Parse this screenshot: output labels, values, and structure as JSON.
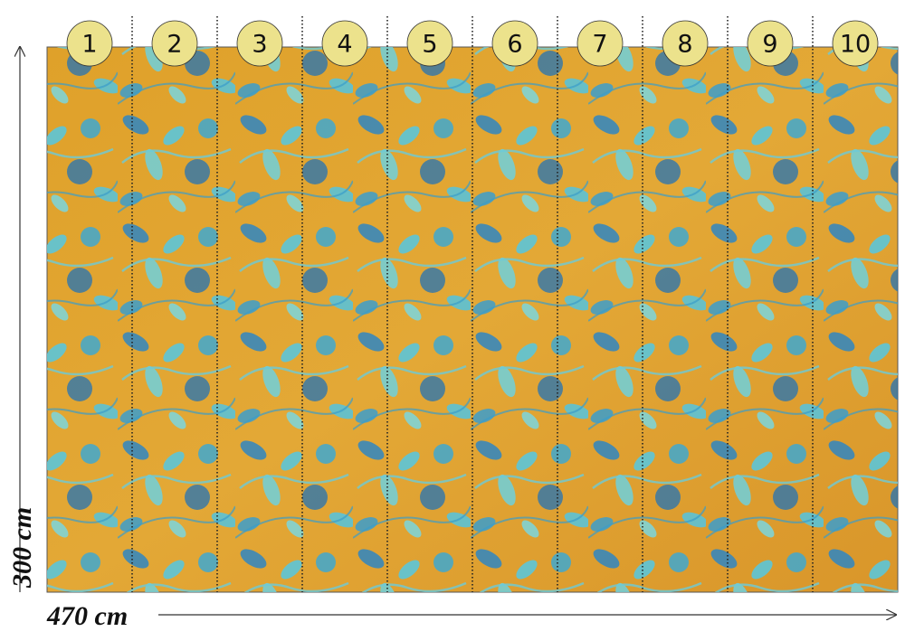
{
  "panels": [
    "1",
    "2",
    "3",
    "4",
    "5",
    "6",
    "7",
    "8",
    "9",
    "10"
  ],
  "dimensions": {
    "height": "300 cm",
    "width": "470 cm"
  }
}
